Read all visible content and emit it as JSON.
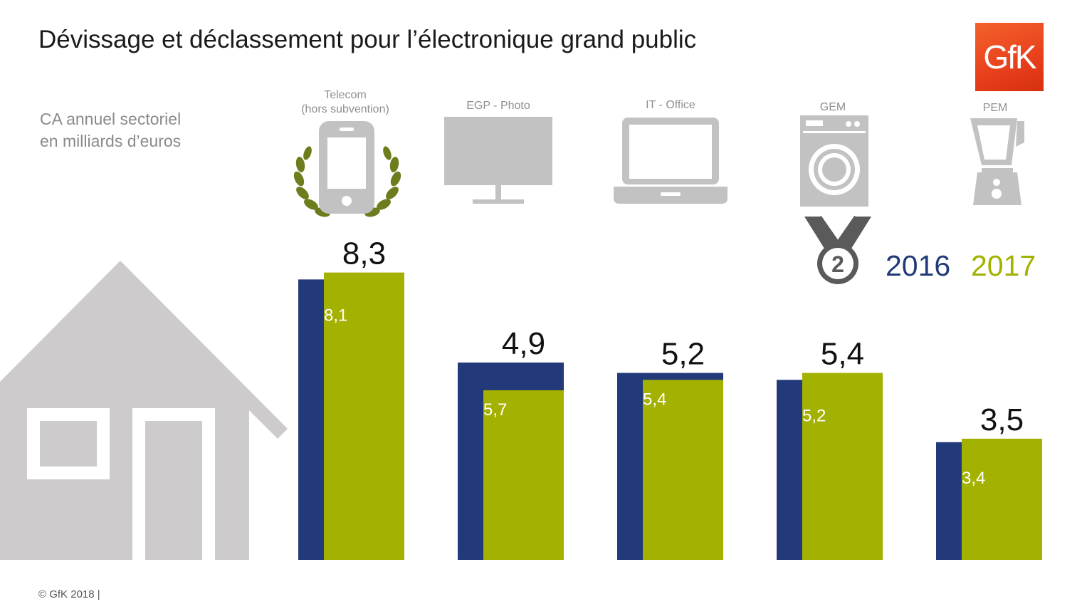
{
  "title": "Dévissage et déclassement pour l’électronique grand public",
  "subtitle_lines": [
    "CA annuel sectoriel",
    "en milliards d’euros"
  ],
  "logo_text": "GfK",
  "footer": "© GfK 2018 |",
  "categories": [
    {
      "lines": [
        "Telecom",
        "(hors subvention)"
      ],
      "icon": "smartphone-laurel-icon"
    },
    {
      "lines": [
        "EGP - Photo"
      ],
      "icon": "tv-monitor-icon"
    },
    {
      "lines": [
        "IT - Office"
      ],
      "icon": "laptop-icon"
    },
    {
      "lines": [
        "GEM"
      ],
      "icon": "washing-machine-icon"
    },
    {
      "lines": [
        "PEM"
      ],
      "icon": "blender-icon"
    }
  ],
  "colors": {
    "y2016": "#223a7a",
    "y2017": "#a3b100",
    "icon_gray": "#c2c2c2",
    "house_gray": "#cdcbcb",
    "laurel": "#6b7d1c"
  },
  "chart_data": {
    "type": "bar",
    "categories": [
      "Telecom (hors subvention)",
      "EGP - Photo",
      "IT - Office",
      "GEM",
      "PEM"
    ],
    "series": [
      {
        "name": "2016",
        "values": [
          8.1,
          5.7,
          5.4,
          5.2,
          3.4
        ],
        "labels": [
          "8,1",
          "5,7",
          "5,4",
          "5,2",
          "3,4"
        ]
      },
      {
        "name": "2017",
        "values": [
          8.3,
          4.9,
          5.2,
          5.4,
          3.5
        ],
        "labels": [
          "8,3",
          "4,9",
          "5,2",
          "5,4",
          "3,5"
        ]
      }
    ],
    "legend": [
      "2016",
      "2017"
    ],
    "legend_position": "right",
    "ylim": [
      0,
      8.3
    ],
    "grid": false
  }
}
